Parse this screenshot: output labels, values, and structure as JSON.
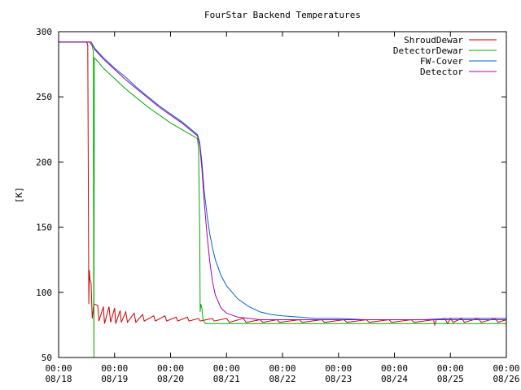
{
  "chart_data": {
    "type": "line",
    "title": "FourStar Backend Temperatures",
    "xlabel": "",
    "ylabel": "[K]",
    "ylim": [
      50,
      300
    ],
    "yticks": [
      50,
      100,
      150,
      200,
      250,
      300
    ],
    "xlim": [
      0,
      8
    ],
    "xticks": [
      {
        "x": 0,
        "time": "00:00",
        "date": "08/18"
      },
      {
        "x": 1,
        "time": "00:00",
        "date": "08/19"
      },
      {
        "x": 2,
        "time": "00:00",
        "date": "08/20"
      },
      {
        "x": 3,
        "time": "00:00",
        "date": "08/21"
      },
      {
        "x": 4,
        "time": "00:00",
        "date": "08/22"
      },
      {
        "x": 5,
        "time": "00:00",
        "date": "08/23"
      },
      {
        "x": 6,
        "time": "00:00",
        "date": "08/24"
      },
      {
        "x": 7,
        "time": "00:00",
        "date": "08/25"
      },
      {
        "x": 8,
        "time": "00:00",
        "date": "08/26"
      }
    ],
    "grid": false,
    "legend_position": "top-right",
    "series": [
      {
        "name": "ShroudDewar",
        "color": "#cc0000",
        "points": [
          [
            0,
            292
          ],
          [
            0.5,
            292
          ],
          [
            0.52,
            290
          ],
          [
            0.53,
            200
          ],
          [
            0.54,
            91
          ],
          [
            0.55,
            117
          ],
          [
            0.56,
            110
          ],
          [
            0.58,
            107
          ],
          [
            0.6,
            80
          ],
          [
            0.63,
            91
          ],
          [
            0.7,
            90
          ],
          [
            0.72,
            78
          ],
          [
            0.8,
            89
          ],
          [
            0.82,
            76
          ],
          [
            0.9,
            89
          ],
          [
            0.93,
            77
          ],
          [
            1.0,
            88
          ],
          [
            1.02,
            76
          ],
          [
            1.1,
            86
          ],
          [
            1.12,
            77
          ],
          [
            1.2,
            85
          ],
          [
            1.23,
            77
          ],
          [
            1.35,
            84
          ],
          [
            1.38,
            77
          ],
          [
            1.5,
            83
          ],
          [
            1.53,
            78
          ],
          [
            1.7,
            82
          ],
          [
            1.73,
            78
          ],
          [
            1.9,
            82
          ],
          [
            1.93,
            78
          ],
          [
            2.1,
            81
          ],
          [
            2.13,
            78
          ],
          [
            2.3,
            81
          ],
          [
            2.33,
            78
          ],
          [
            2.5,
            80
          ],
          [
            2.53,
            78
          ],
          [
            2.75,
            80
          ],
          [
            2.78,
            78
          ],
          [
            3.0,
            80
          ],
          [
            3.05,
            77
          ],
          [
            3.3,
            80
          ],
          [
            3.35,
            77
          ],
          [
            3.6,
            79
          ],
          [
            3.65,
            77
          ],
          [
            3.9,
            79
          ],
          [
            3.95,
            77
          ],
          [
            4.3,
            79
          ],
          [
            4.35,
            77
          ],
          [
            4.7,
            79
          ],
          [
            4.75,
            77
          ],
          [
            5.1,
            79
          ],
          [
            5.15,
            77
          ],
          [
            5.5,
            79
          ],
          [
            5.55,
            77
          ],
          [
            5.9,
            79
          ],
          [
            5.95,
            77
          ],
          [
            6.3,
            79
          ],
          [
            6.35,
            77
          ],
          [
            6.7,
            79
          ],
          [
            6.72,
            75
          ],
          [
            6.75,
            79
          ],
          [
            6.9,
            80
          ],
          [
            6.95,
            76
          ],
          [
            7.0,
            80
          ],
          [
            7.05,
            77
          ],
          [
            7.2,
            80
          ],
          [
            7.25,
            77
          ],
          [
            7.5,
            80
          ],
          [
            7.55,
            77
          ],
          [
            7.8,
            80
          ],
          [
            7.85,
            77
          ],
          [
            8.0,
            79
          ]
        ]
      },
      {
        "name": "DetectorDewar",
        "color": "#00aa00",
        "points": [
          [
            0,
            292
          ],
          [
            0.55,
            292
          ],
          [
            0.6,
            289
          ],
          [
            0.62,
            285
          ],
          [
            0.63,
            50
          ],
          [
            0.64,
            280
          ],
          [
            0.8,
            272
          ],
          [
            1.0,
            264
          ],
          [
            1.2,
            256
          ],
          [
            1.4,
            249
          ],
          [
            1.6,
            242
          ],
          [
            1.8,
            236
          ],
          [
            2.0,
            230
          ],
          [
            2.2,
            225
          ],
          [
            2.48,
            218
          ],
          [
            2.5,
            210
          ],
          [
            2.52,
            150
          ],
          [
            2.53,
            85
          ],
          [
            2.54,
            91
          ],
          [
            2.56,
            88
          ],
          [
            2.58,
            79
          ],
          [
            2.62,
            76
          ],
          [
            3.0,
            76
          ],
          [
            4.0,
            76
          ],
          [
            5.0,
            76
          ],
          [
            6.0,
            76
          ],
          [
            7.0,
            76
          ],
          [
            8.0,
            76
          ]
        ]
      },
      {
        "name": "FW-Cover",
        "color": "#0066cc",
        "points": [
          [
            0,
            292
          ],
          [
            0.58,
            292
          ],
          [
            0.65,
            287
          ],
          [
            0.8,
            280
          ],
          [
            1.0,
            272
          ],
          [
            1.2,
            265
          ],
          [
            1.4,
            257
          ],
          [
            1.6,
            250
          ],
          [
            1.8,
            243
          ],
          [
            2.0,
            237
          ],
          [
            2.2,
            231
          ],
          [
            2.48,
            221
          ],
          [
            2.52,
            215
          ],
          [
            2.56,
            200
          ],
          [
            2.6,
            178
          ],
          [
            2.65,
            160
          ],
          [
            2.7,
            145
          ],
          [
            2.75,
            134
          ],
          [
            2.8,
            125
          ],
          [
            2.9,
            113
          ],
          [
            3.0,
            105
          ],
          [
            3.2,
            95
          ],
          [
            3.4,
            89
          ],
          [
            3.6,
            85
          ],
          [
            3.8,
            83
          ],
          [
            4.0,
            82
          ],
          [
            4.3,
            81
          ],
          [
            4.6,
            80
          ],
          [
            5.0,
            80
          ],
          [
            5.5,
            79
          ],
          [
            6.0,
            79
          ],
          [
            6.5,
            79
          ],
          [
            7.0,
            79
          ],
          [
            7.5,
            79
          ],
          [
            8.0,
            79
          ]
        ]
      },
      {
        "name": "Detector",
        "color": "#aa00aa",
        "points": [
          [
            0,
            292
          ],
          [
            0.58,
            292
          ],
          [
            0.65,
            286
          ],
          [
            0.8,
            279
          ],
          [
            1.0,
            271
          ],
          [
            1.2,
            263
          ],
          [
            1.4,
            256
          ],
          [
            1.6,
            249
          ],
          [
            1.8,
            242
          ],
          [
            2.0,
            236
          ],
          [
            2.2,
            230
          ],
          [
            2.48,
            220
          ],
          [
            2.52,
            213
          ],
          [
            2.56,
            195
          ],
          [
            2.6,
            170
          ],
          [
            2.65,
            145
          ],
          [
            2.7,
            124
          ],
          [
            2.75,
            108
          ],
          [
            2.8,
            98
          ],
          [
            2.9,
            88
          ],
          [
            3.0,
            84
          ],
          [
            3.2,
            81
          ],
          [
            3.4,
            80
          ],
          [
            3.6,
            79
          ],
          [
            4.0,
            79
          ],
          [
            5.0,
            79
          ],
          [
            6.0,
            79
          ],
          [
            6.5,
            79
          ],
          [
            7.0,
            80
          ],
          [
            7.5,
            80
          ],
          [
            8.0,
            80
          ]
        ]
      }
    ]
  }
}
